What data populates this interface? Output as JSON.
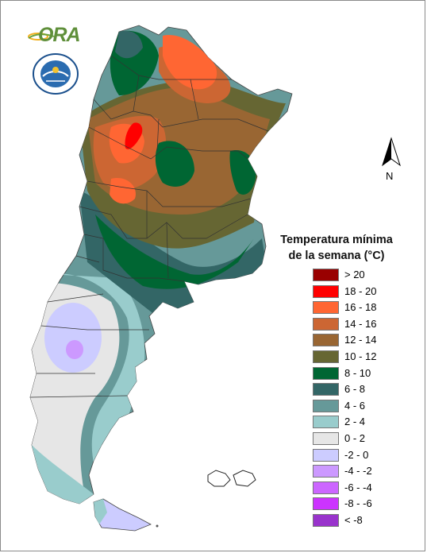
{
  "logos": {
    "ora": {
      "text": "ORA",
      "icon": "sunrise-leaf-logo"
    },
    "smn": {
      "text": "SERVICIO METEOROLOGICO NACIONAL · ARGENTINA",
      "icon": "weather-service-seal"
    }
  },
  "north_arrow": {
    "label": "N"
  },
  "legend": {
    "title_line1": "Temperatura mínima",
    "title_line2": "de la semana (°C)",
    "items": [
      {
        "label": "> 20",
        "color": "#990000"
      },
      {
        "label": "18 - 20",
        "color": "#ff0000"
      },
      {
        "label": "16 - 18",
        "color": "#ff6633"
      },
      {
        "label": "14 - 16",
        "color": "#cc6633"
      },
      {
        "label": "12 - 14",
        "color": "#996633"
      },
      {
        "label": "10 - 12",
        "color": "#666633"
      },
      {
        "label": "8 - 10",
        "color": "#006633"
      },
      {
        "label": "6 - 8",
        "color": "#336666"
      },
      {
        "label": "4 - 6",
        "color": "#669999"
      },
      {
        "label": "2 - 4",
        "color": "#99cccc"
      },
      {
        "label": "0 - 2",
        "color": "#e6e6e6"
      },
      {
        "label": "-2 - 0",
        "color": "#ccccff"
      },
      {
        "label": "-4 - -2",
        "color": "#cc99ff"
      },
      {
        "label": "-6 - -4",
        "color": "#cc66ff"
      },
      {
        "label": "-8 - -6",
        "color": "#cc33ff"
      },
      {
        "label": "< -8",
        "color": "#9933cc"
      }
    ]
  }
}
